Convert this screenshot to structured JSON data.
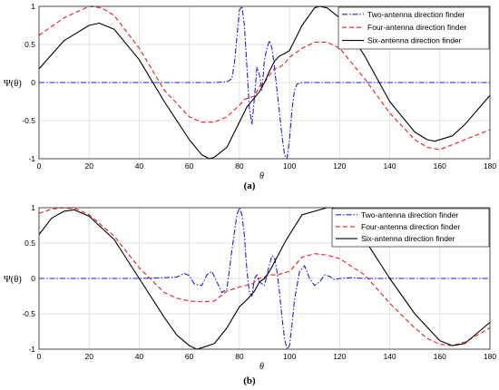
{
  "chart_data": [
    {
      "type": "line",
      "caption": "(a)",
      "xlabel": "θ",
      "ylabel": "Ψ(θ)",
      "xlim": [
        0,
        180
      ],
      "ylim": [
        -1,
        1
      ],
      "x_ticks": [
        "0",
        "20",
        "40",
        "60",
        "80",
        "100",
        "120",
        "140",
        "160",
        "180"
      ],
      "y_ticks": [
        "-1",
        "-0.5",
        "0",
        "0.5",
        "1"
      ],
      "grid": true,
      "legend_position": "top-right",
      "series": [
        {
          "name": "Two-antenna direction finder",
          "color": "#1f1fd6",
          "style": "dash-dot",
          "x": [
            0,
            60,
            70,
            75,
            77,
            78,
            79,
            80,
            81,
            82,
            83,
            84,
            85,
            86,
            87,
            88,
            89,
            90,
            91,
            92,
            93,
            94,
            95,
            96,
            97,
            98,
            99,
            100,
            101,
            102,
            103,
            105,
            110,
            120,
            180
          ],
          "y": [
            0,
            0,
            0,
            0.01,
            0.05,
            0.25,
            0.6,
            0.95,
            1.0,
            0.75,
            0.2,
            -0.35,
            -0.55,
            -0.2,
            0.2,
            0.1,
            -0.1,
            0.3,
            0.45,
            0.55,
            0.45,
            0.2,
            -0.1,
            -0.4,
            -0.7,
            -0.95,
            -1.0,
            -0.75,
            -0.35,
            -0.1,
            -0.02,
            0,
            0,
            0,
            0
          ]
        },
        {
          "name": "Four-antenna direction finder",
          "color": "#e02020",
          "style": "dashed",
          "x": [
            0,
            10,
            20,
            25,
            30,
            40,
            50,
            60,
            65,
            70,
            75,
            80,
            82,
            84,
            86,
            88,
            90,
            92,
            94,
            96,
            98,
            100,
            105,
            110,
            115,
            120,
            130,
            140,
            150,
            155,
            160,
            170,
            180
          ],
          "y": [
            0.62,
            0.85,
            1.0,
            0.98,
            0.88,
            0.45,
            -0.1,
            -0.45,
            -0.52,
            -0.52,
            -0.45,
            -0.3,
            -0.22,
            -0.2,
            -0.18,
            -0.05,
            0.0,
            0.1,
            0.18,
            0.2,
            0.25,
            0.33,
            0.45,
            0.53,
            0.53,
            0.45,
            0.05,
            -0.4,
            -0.75,
            -0.85,
            -0.88,
            -0.75,
            -0.62
          ]
        },
        {
          "name": "Six-antenna direction finder",
          "color": "#000000",
          "style": "solid",
          "x": [
            0,
            10,
            20,
            24,
            30,
            40,
            50,
            60,
            65,
            68,
            70,
            75,
            80,
            83,
            86,
            88,
            90,
            92,
            94,
            96,
            98,
            100,
            105,
            110,
            112,
            115,
            120,
            130,
            140,
            150,
            155,
            158,
            165,
            170,
            180
          ],
          "y": [
            0.18,
            0.55,
            0.75,
            0.78,
            0.7,
            0.3,
            -0.25,
            -0.75,
            -0.95,
            -1.0,
            -0.98,
            -0.85,
            -0.52,
            -0.32,
            -0.2,
            -0.12,
            0.0,
            0.15,
            0.28,
            0.35,
            0.38,
            0.42,
            0.75,
            0.98,
            1.0,
            0.98,
            0.85,
            0.35,
            -0.25,
            -0.65,
            -0.75,
            -0.77,
            -0.7,
            -0.55,
            -0.17
          ]
        }
      ]
    },
    {
      "type": "line",
      "caption": "(b)",
      "xlabel": "θ",
      "ylabel": "Ψ(θ)",
      "xlim": [
        0,
        180
      ],
      "ylim": [
        -1,
        1
      ],
      "x_ticks": [
        "0",
        "20",
        "40",
        "60",
        "80",
        "100",
        "120",
        "140",
        "160",
        "180"
      ],
      "y_ticks": [
        "-1",
        "-0.5",
        "0",
        "0.5",
        "1"
      ],
      "grid": true,
      "legend_position": "top-right",
      "series": [
        {
          "name": "Two-antenna direction finder",
          "color": "#1f1fd6",
          "style": "dash-dot",
          "x": [
            0,
            40,
            50,
            55,
            58,
            60,
            62,
            65,
            67,
            69,
            71,
            73,
            75,
            77,
            79,
            80,
            81,
            82,
            83,
            84,
            85,
            86,
            87,
            88,
            90,
            92,
            93,
            94,
            95,
            96,
            97,
            98,
            99,
            100,
            101,
            102,
            104,
            106,
            108,
            110,
            112,
            114,
            116,
            118,
            120,
            125,
            130,
            180
          ],
          "y": [
            0,
            0,
            0.01,
            0.02,
            0.07,
            0.04,
            -0.08,
            -0.1,
            0.05,
            0.1,
            -0.05,
            -0.2,
            -0.15,
            0.4,
            0.9,
            1.0,
            0.9,
            0.6,
            0.1,
            -0.2,
            -0.25,
            0.0,
            0.05,
            -0.05,
            -0.1,
            0.2,
            0.32,
            0.3,
            0.1,
            -0.2,
            -0.55,
            -0.85,
            -1.0,
            -0.95,
            -0.65,
            -0.3,
            0.1,
            0.18,
            0.0,
            -0.1,
            -0.05,
            0.05,
            0.03,
            -0.02,
            0,
            0.01,
            0,
            0
          ]
        },
        {
          "name": "Four-antenna direction finder",
          "color": "#e02020",
          "style": "dashed",
          "x": [
            0,
            5,
            10,
            15,
            20,
            30,
            40,
            50,
            55,
            60,
            65,
            70,
            75,
            80,
            85,
            88,
            90,
            92,
            95,
            100,
            105,
            110,
            115,
            120,
            130,
            140,
            150,
            155,
            160,
            165,
            170,
            180
          ],
          "y": [
            0.92,
            0.98,
            1.0,
            0.98,
            0.9,
            0.6,
            0.15,
            -0.2,
            -0.28,
            -0.32,
            -0.33,
            -0.32,
            -0.18,
            -0.12,
            -0.08,
            0.0,
            0.02,
            0.05,
            0.05,
            0.1,
            0.3,
            0.35,
            0.33,
            0.28,
            0.05,
            -0.35,
            -0.7,
            -0.85,
            -0.93,
            -0.95,
            -0.9,
            -0.7
          ]
        },
        {
          "name": "Six-antenna direction finder",
          "color": "#000000",
          "style": "solid",
          "x": [
            0,
            5,
            10,
            14,
            20,
            30,
            40,
            50,
            55,
            60,
            63,
            65,
            70,
            75,
            80,
            83,
            86,
            88,
            90,
            92,
            95,
            98,
            100,
            105,
            110,
            115,
            117,
            120,
            130,
            140,
            150,
            160,
            165,
            170,
            180
          ],
          "y": [
            0.62,
            0.85,
            0.95,
            0.97,
            0.88,
            0.55,
            0.0,
            -0.55,
            -0.8,
            -0.95,
            -1.0,
            -0.98,
            -0.92,
            -0.7,
            -0.4,
            -0.3,
            -0.18,
            -0.05,
            0.0,
            0.1,
            0.3,
            0.5,
            0.62,
            0.9,
            0.95,
            1.0,
            1.0,
            0.95,
            0.55,
            0.0,
            -0.5,
            -0.88,
            -0.95,
            -0.92,
            -0.62
          ]
        }
      ]
    }
  ]
}
